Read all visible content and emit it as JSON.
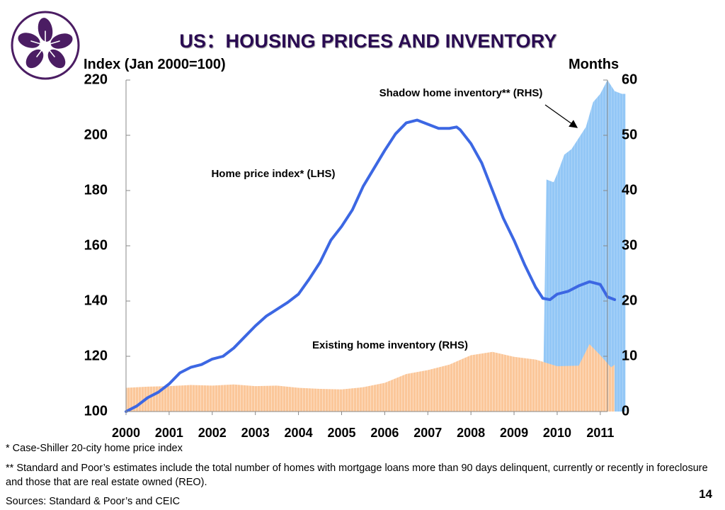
{
  "title": "US：HOUSING PRICES AND INVENTORY",
  "logo_icon": "bauhinia-flower-logo-icon",
  "left_axis_title": "Index (Jan 2000=100)",
  "right_axis_title": "Months",
  "footnotes": {
    "note1": "* Case-Shiller 20-city home price index",
    "note2": "** Standard and Poor’s estimates include the total number of homes with mortgage loans more than 90 days delinquent, currently or recently in foreclosure and those that are real estate owned (REO).",
    "sources": "Sources: Standard & Poor’s and CEIC"
  },
  "page_number": "14",
  "colors": {
    "title": "#2a0b52",
    "logo": "#4b1d63",
    "price_line": "#3c67e3",
    "shadow_fill": "#93c7f6",
    "existing_fill": "#fbc79a"
  },
  "chart_data": {
    "type": "line",
    "x_range": [
      "2000-01",
      "2011-03"
    ],
    "x_tick_labels": [
      "2000",
      "2001",
      "2002",
      "2003",
      "2004",
      "2005",
      "2006",
      "2007",
      "2008",
      "2009",
      "2010",
      "2011"
    ],
    "y_left": {
      "label": "Index (Jan 2000=100)",
      "range": [
        100,
        220
      ],
      "ticks": [
        "100",
        "120",
        "140",
        "160",
        "180",
        "200",
        "220"
      ]
    },
    "y_right": {
      "label": "Months",
      "range": [
        0,
        60
      ],
      "ticks": [
        "0",
        "10",
        "20",
        "30",
        "40",
        "50",
        "60"
      ]
    },
    "grid": false,
    "series": [
      {
        "name": "Home price index* (LHS)",
        "type": "line",
        "axis": "left",
        "points": [
          [
            "2000-01",
            100
          ],
          [
            "2000-04",
            102
          ],
          [
            "2000-07",
            105
          ],
          [
            "2000-10",
            107
          ],
          [
            "2001-01",
            110
          ],
          [
            "2001-04",
            114
          ],
          [
            "2001-07",
            116
          ],
          [
            "2001-10",
            117
          ],
          [
            "2002-01",
            119
          ],
          [
            "2002-04",
            120
          ],
          [
            "2002-07",
            123
          ],
          [
            "2002-10",
            127
          ],
          [
            "2003-01",
            131
          ],
          [
            "2003-04",
            134.5
          ],
          [
            "2003-07",
            137
          ],
          [
            "2003-10",
            139.5
          ],
          [
            "2004-01",
            142.5
          ],
          [
            "2004-04",
            148
          ],
          [
            "2004-07",
            154
          ],
          [
            "2004-10",
            162
          ],
          [
            "2005-01",
            167
          ],
          [
            "2005-04",
            173
          ],
          [
            "2005-07",
            181.5
          ],
          [
            "2005-10",
            188
          ],
          [
            "2006-01",
            194.5
          ],
          [
            "2006-04",
            200.5
          ],
          [
            "2006-07",
            204.5
          ],
          [
            "2006-10",
            205.5
          ],
          [
            "2007-01",
            204
          ],
          [
            "2007-04",
            202.5
          ],
          [
            "2007-07",
            202.5
          ],
          [
            "2007-09",
            203
          ],
          [
            "2007-10",
            202
          ],
          [
            "2008-01",
            197
          ],
          [
            "2008-04",
            190
          ],
          [
            "2008-07",
            180
          ],
          [
            "2008-10",
            170
          ],
          [
            "2009-01",
            162
          ],
          [
            "2009-04",
            153
          ],
          [
            "2009-07",
            145
          ],
          [
            "2009-09",
            141
          ],
          [
            "2009-11",
            140.5
          ],
          [
            "2010-01",
            142.5
          ],
          [
            "2010-04",
            143.5
          ],
          [
            "2010-07",
            145.5
          ],
          [
            "2010-10",
            147
          ],
          [
            "2011-01",
            146
          ],
          [
            "2011-03",
            141.5
          ],
          [
            "2011-05",
            140.5
          ]
        ]
      },
      {
        "name": "Shadow home inventory** (RHS)",
        "type": "area",
        "axis": "right",
        "points": [
          [
            "2009-09",
            0
          ],
          [
            "2009-10",
            42
          ],
          [
            "2009-12",
            41.5
          ],
          [
            "2010-01",
            43
          ],
          [
            "2010-03",
            46.5
          ],
          [
            "2010-05",
            47.5
          ],
          [
            "2010-07",
            49.5
          ],
          [
            "2010-09",
            51.5
          ],
          [
            "2010-11",
            56
          ],
          [
            "2011-01",
            57.5
          ],
          [
            "2011-03",
            60.5
          ],
          [
            "2011-05",
            58
          ],
          [
            "2011-07",
            57.5
          ],
          [
            "2011-08",
            57.5
          ]
        ]
      },
      {
        "name": "Existing home inventory (RHS)",
        "type": "area",
        "axis": "right",
        "points": [
          [
            "2000-01",
            4.3
          ],
          [
            "2000-07",
            4.5
          ],
          [
            "2001-01",
            4.6
          ],
          [
            "2001-07",
            4.8
          ],
          [
            "2002-01",
            4.7
          ],
          [
            "2002-07",
            4.9
          ],
          [
            "2003-01",
            4.6
          ],
          [
            "2003-07",
            4.7
          ],
          [
            "2004-01",
            4.3
          ],
          [
            "2004-07",
            4.1
          ],
          [
            "2005-01",
            4.0
          ],
          [
            "2005-07",
            4.4
          ],
          [
            "2006-01",
            5.2
          ],
          [
            "2006-07",
            6.8
          ],
          [
            "2007-01",
            7.5
          ],
          [
            "2007-07",
            8.5
          ],
          [
            "2008-01",
            10.2
          ],
          [
            "2008-07",
            10.8
          ],
          [
            "2009-01",
            9.9
          ],
          [
            "2009-07",
            9.4
          ],
          [
            "2010-01",
            8.2
          ],
          [
            "2010-07",
            8.3
          ],
          [
            "2010-10",
            12.2
          ],
          [
            "2011-01",
            10.2
          ],
          [
            "2011-04",
            8.0
          ],
          [
            "2011-05",
            8.5
          ]
        ]
      }
    ],
    "annotations": [
      {
        "text": "Shadow home inventory** (RHS)",
        "arrow": true
      },
      {
        "text": "Home price index* (LHS)"
      },
      {
        "text": "Existing home inventory (RHS)"
      }
    ]
  }
}
